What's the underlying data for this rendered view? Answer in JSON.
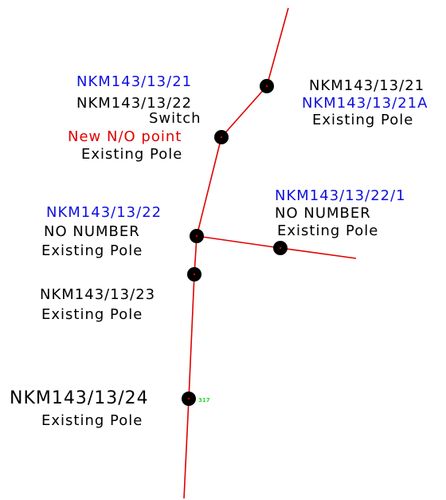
{
  "poles": [
    {
      "labels": [
        "NKM143/13/21",
        "NKM143/13/22",
        "Switch",
        "New N/O point",
        "Existing Pole"
      ]
    },
    {
      "labels": [
        "NKM143/13/21",
        "NKM143/13/21A",
        "Existing Pole"
      ]
    },
    {
      "labels": [
        "NKM143/13/22/1",
        "NO NUMBER",
        "Existing Pole"
      ]
    },
    {
      "labels": [
        "NKM143/13/22",
        "NO NUMBER",
        "Existing Pole"
      ]
    },
    {
      "labels": [
        "NKM143/13/23",
        "Existing Pole"
      ]
    },
    {
      "labels": [
        "NKM143/13/24",
        "Existing Pole"
      ],
      "tag": "317"
    }
  ]
}
